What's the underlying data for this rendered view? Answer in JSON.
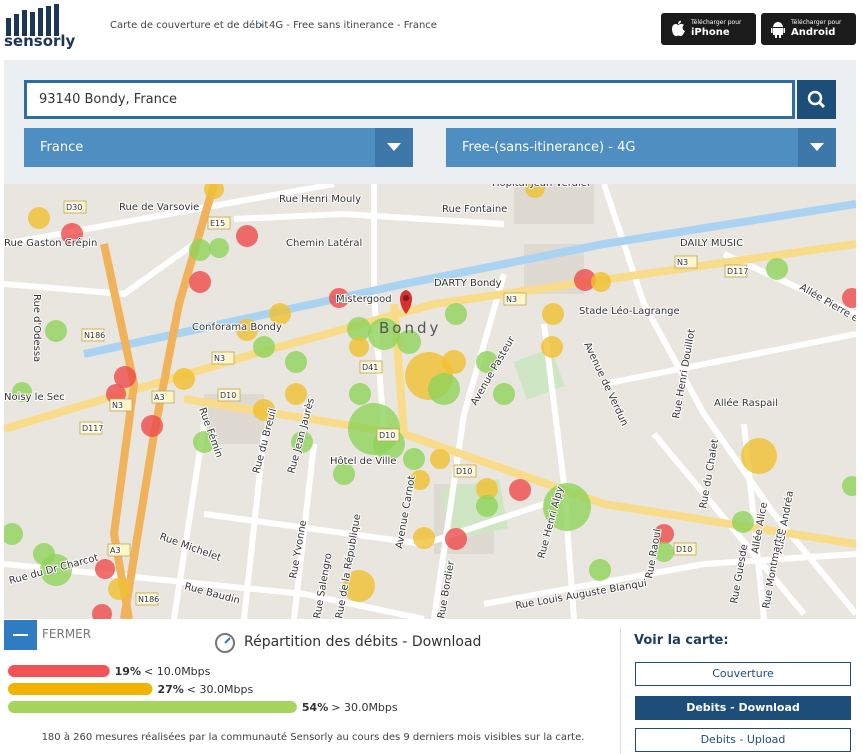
{
  "header": {
    "logo": "sensorly",
    "breadcrumb": [
      "Carte de couverture et de débit",
      "4G - Free sans itinerance - France"
    ],
    "apps": [
      {
        "small": "Télécharger pour",
        "name": "iPhone"
      },
      {
        "small": "Télécharger pour",
        "name": "Android"
      }
    ]
  },
  "search": {
    "query": "93140 Bondy, France",
    "country": "France",
    "network": "Free-(sans-itinerance) - 4G"
  },
  "map": {
    "labels": [
      "D30",
      "Rue de Varsovie",
      "Rue Gaston Crépin",
      "Rue d'Odessa",
      "Rue Henri Mouly",
      "Hôpital Jean Verdier",
      "Rue Fontaine",
      "E15",
      "Chemin Latéral",
      "DAILY MUSIC",
      "N3",
      "D117",
      "Allée Pierre et M",
      "DARTY Bondy",
      "Mistergood",
      "N3",
      "Stade Léo-Lagrange",
      "Conforama Bondy",
      "N186",
      "Bondy",
      "N3",
      "D41",
      "Avenue Pasteur",
      "Avenue de Verdun",
      "Rue Henri Douillot",
      "Allée Raspail",
      "Noisy le Sec",
      "N3",
      "A3",
      "D10",
      "D117",
      "Rue Fémin",
      "Rue du Breuil",
      "Rue Jean Jaurès",
      "D10",
      "Hôtel de Ville",
      "D10",
      "Avenue Carnot",
      "Rue Henri Alpy",
      "Rue du Chalet",
      "Allée Alice",
      "Allée Andréa",
      "Rue Michelet",
      "Rue Yvonne",
      "D10",
      "A3",
      "Rue du Dr Charcot",
      "Rue Baudin",
      "N186",
      "Rue Salengro",
      "Rue de la République",
      "Rue Bordier",
      "Rue Louis Auguste Blanqui",
      "Rue Raoul",
      "Rue Guesde",
      "Rue Montmartre"
    ]
  },
  "panel": {
    "close": "FERMER",
    "title": "Répartition des débits - Download",
    "distribution": {
      "items": [
        {
          "value": 19,
          "value_label": "19%",
          "label": "< 10.0Mbps",
          "color": "#f05454"
        },
        {
          "value": 27,
          "value_label": "27%",
          "label": "< 30.0Mbps",
          "color": "#f0b400"
        },
        {
          "value": 54,
          "value_label": "54%",
          "label": "> 30.0Mbps",
          "color": "#a6d55e"
        }
      ]
    },
    "footnote": "180 à 260 mesures réalisées par la communauté Sensorly au cours des 9 derniers mois visibles sur la carte.",
    "view": {
      "title": "Voir la carte:",
      "buttons": [
        "Couverture",
        "Debits - Download",
        "Debits - Upload"
      ]
    }
  }
}
